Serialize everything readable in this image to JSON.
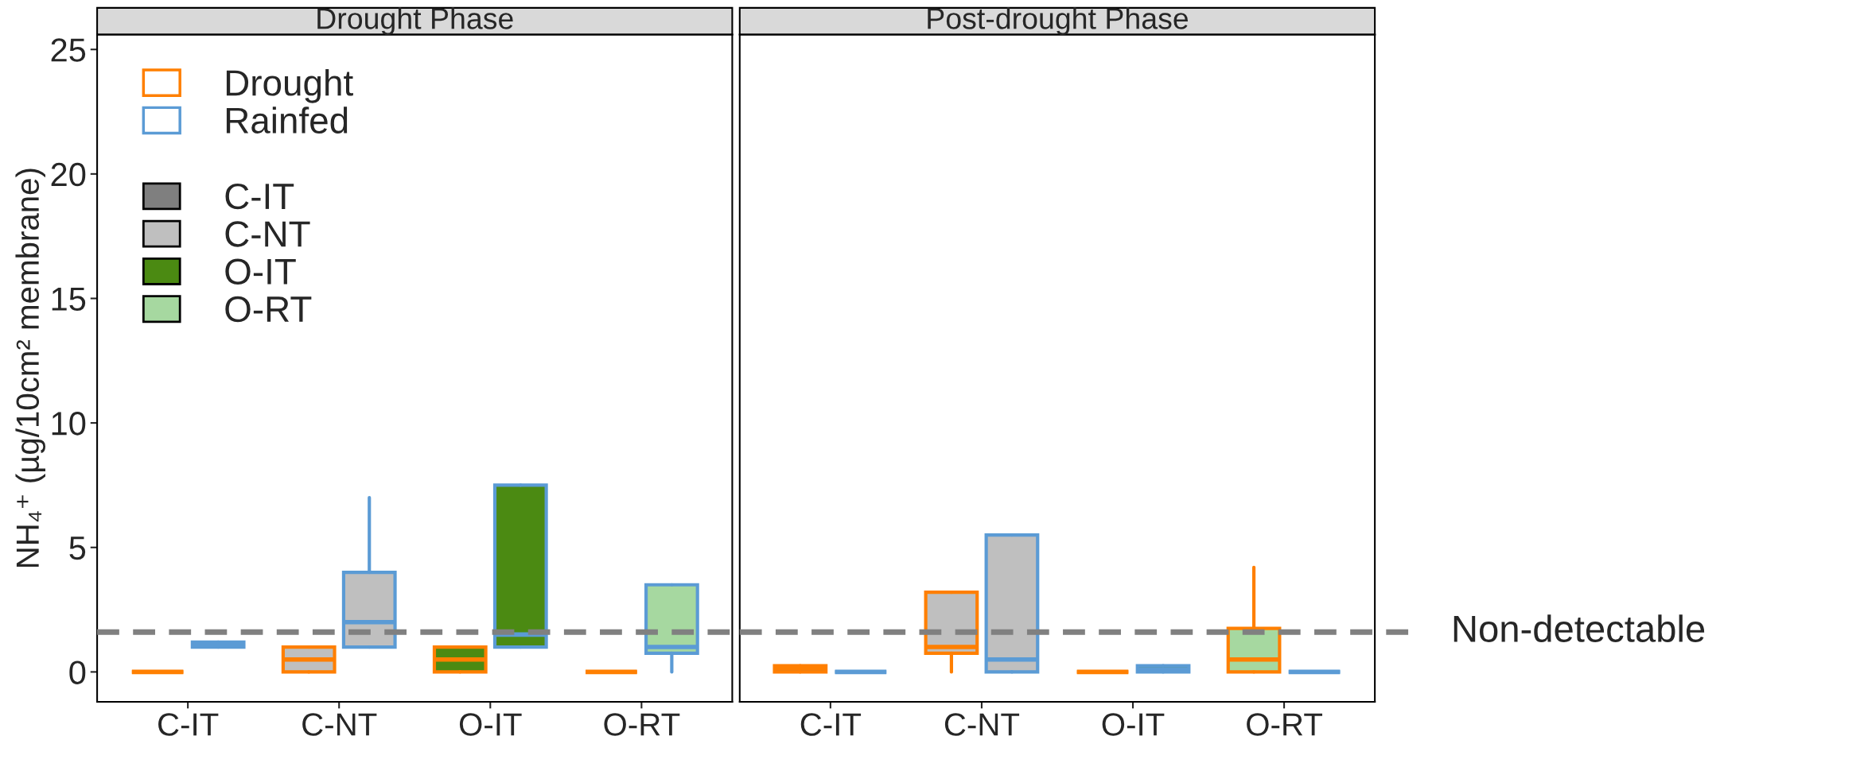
{
  "chart_data": [
    {
      "type": "box",
      "title": "Drought Phase",
      "ylabel": "NH₄⁺ (µg/10cm² membrane)",
      "categories": [
        "C-IT",
        "C-NT",
        "O-IT",
        "O-RT"
      ],
      "colors": [
        "#7f7f7f",
        "#bfbfbf",
        "#4b8a12",
        "#a6d8a0"
      ],
      "ylim": [
        -1.2,
        25.6
      ],
      "yticks": [
        0,
        5,
        10,
        15,
        20,
        25
      ],
      "grid": false,
      "legend": "top left",
      "series": [
        {
          "name": "Drought",
          "color": "#ff7f00",
          "boxes": [
            {
              "low": 0,
              "q1": 0,
              "median": 0,
              "q3": 0,
              "high": 0
            },
            {
              "low": 0,
              "q1": 0,
              "median": 0.5,
              "q3": 1.0,
              "high": 1.0
            },
            {
              "low": 0,
              "q1": 0,
              "median": 0.5,
              "q3": 1.0,
              "high": 1.0
            },
            {
              "low": 0,
              "q1": 0,
              "median": 0,
              "q3": 0,
              "high": 0
            }
          ]
        },
        {
          "name": "Rainfed",
          "color": "#5b9bd5",
          "boxes": [
            {
              "low": 1.0,
              "q1": 1.0,
              "median": 1.1,
              "q3": 1.2,
              "high": 1.2
            },
            {
              "low": 1.0,
              "q1": 1.0,
              "median": 2.0,
              "q3": 4.0,
              "high": 7.0
            },
            {
              "low": 1.0,
              "q1": 1.0,
              "median": 1.5,
              "q3": 7.5,
              "high": 7.5
            },
            {
              "low": 0,
              "q1": 0.75,
              "median": 1.0,
              "q3": 3.5,
              "high": 3.5
            }
          ]
        }
      ],
      "ref_lines": [
        {
          "axis": "y",
          "value": 1.6,
          "color": "#808080",
          "line_style": "dashed"
        }
      ]
    },
    {
      "type": "box",
      "title": "Post-drought Phase",
      "categories": [
        "C-IT",
        "C-NT",
        "O-IT",
        "O-RT"
      ],
      "colors": [
        "#7f7f7f",
        "#bfbfbf",
        "#4b8a12",
        "#a6d8a0"
      ],
      "ylim": [
        -1.2,
        25.6
      ],
      "yticks": [
        0,
        5,
        10,
        15,
        20,
        25
      ],
      "grid": false,
      "tick_labels": "x",
      "series": [
        {
          "color": "#ff7f00",
          "boxes": [
            {
              "low": 0,
              "q1": 0,
              "median": 0.15,
              "q3": 0.25,
              "high": 0.25
            },
            {
              "low": 0,
              "q1": 0.75,
              "median": 1.0,
              "q3": 3.2,
              "high": 3.2
            },
            {
              "low": 0,
              "q1": 0,
              "median": 0,
              "q3": 0,
              "high": 0
            },
            {
              "low": 0,
              "q1": 0,
              "median": 0.5,
              "q3": 1.75,
              "high": 4.2
            }
          ]
        },
        {
          "color": "#5b9bd5",
          "boxes": [
            {
              "low": 0,
              "q1": 0,
              "median": 0,
              "q3": 0,
              "high": 0
            },
            {
              "low": 0,
              "q1": 0,
              "median": 0.5,
              "q3": 5.5,
              "high": 5.5
            },
            {
              "low": 0,
              "q1": 0,
              "median": 0.1,
              "q3": 0.25,
              "high": 0.25
            },
            {
              "low": 0,
              "q1": 0,
              "median": 0,
              "q3": 0,
              "high": 0
            }
          ]
        }
      ],
      "ref_lines": [
        {
          "axis": "y",
          "value": 1.6,
          "label": "Non-detectable",
          "color": "#808080",
          "line_style": "dashed"
        }
      ]
    }
  ]
}
